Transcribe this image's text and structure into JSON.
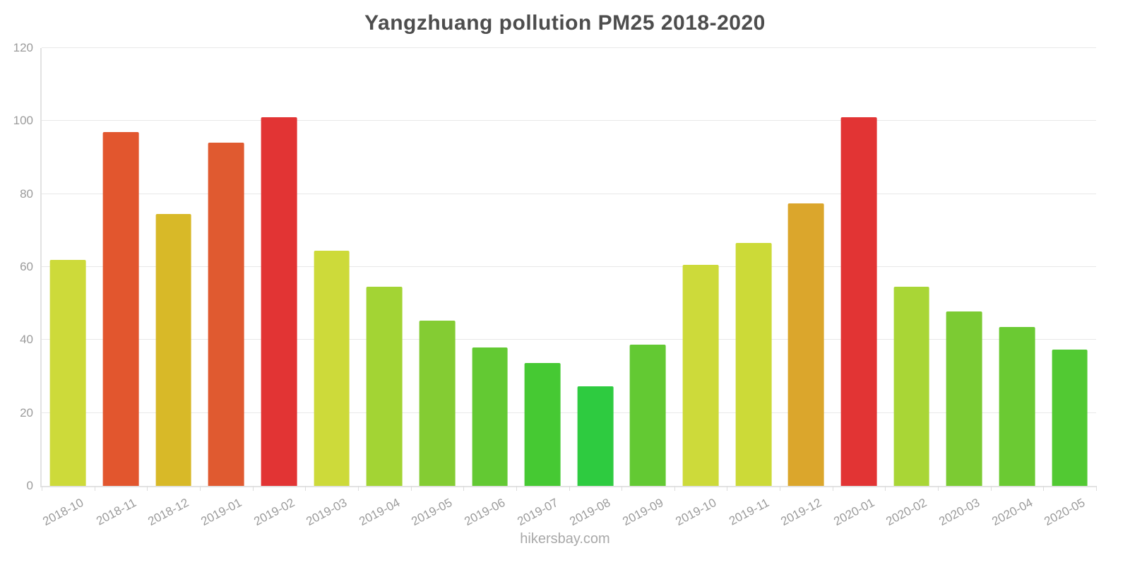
{
  "title": "Yangzhuang pollution PM25 2018-2020",
  "footer": "hikersbay.com",
  "chart_data": {
    "type": "bar",
    "title": "Yangzhuang pollution PM25 2018-2020",
    "xlabel": "",
    "ylabel": "",
    "ylim": [
      0,
      120
    ],
    "yticks": [
      0,
      20,
      40,
      60,
      80,
      100,
      120
    ],
    "grid": true,
    "legend": false,
    "categories": [
      "2018-10",
      "2018-11",
      "2018-12",
      "2019-01",
      "2019-02",
      "2019-03",
      "2019-04",
      "2019-05",
      "2019-06",
      "2019-07",
      "2019-08",
      "2019-09",
      "2019-10",
      "2019-11",
      "2019-12",
      "2020-01",
      "2020-02",
      "2020-03",
      "2020-04",
      "2020-05"
    ],
    "values": [
      62,
      97,
      74.5,
      94,
      101,
      64.5,
      54.5,
      45.3,
      38,
      33.6,
      27.2,
      38.7,
      60.6,
      66.6,
      77.4,
      101,
      54.5,
      47.8,
      43.6,
      37.3
    ],
    "colors": [
      "#cdda3a",
      "#e2562e",
      "#d8b928",
      "#e05a30",
      "#e23434",
      "#cdda3a",
      "#a3d434",
      "#84cc33",
      "#63c933",
      "#46c933",
      "#2ecb40",
      "#63c933",
      "#cdda3a",
      "#ccda38",
      "#dba62c",
      "#e23434",
      "#a9d636",
      "#7ccb33",
      "#6bca33",
      "#52c933"
    ],
    "axis_line_color": "#e2e2e2",
    "gridline_color": "#e8e8e8",
    "tick_label_color": "#9b9b9b",
    "title_color": "#4d4d4d"
  }
}
